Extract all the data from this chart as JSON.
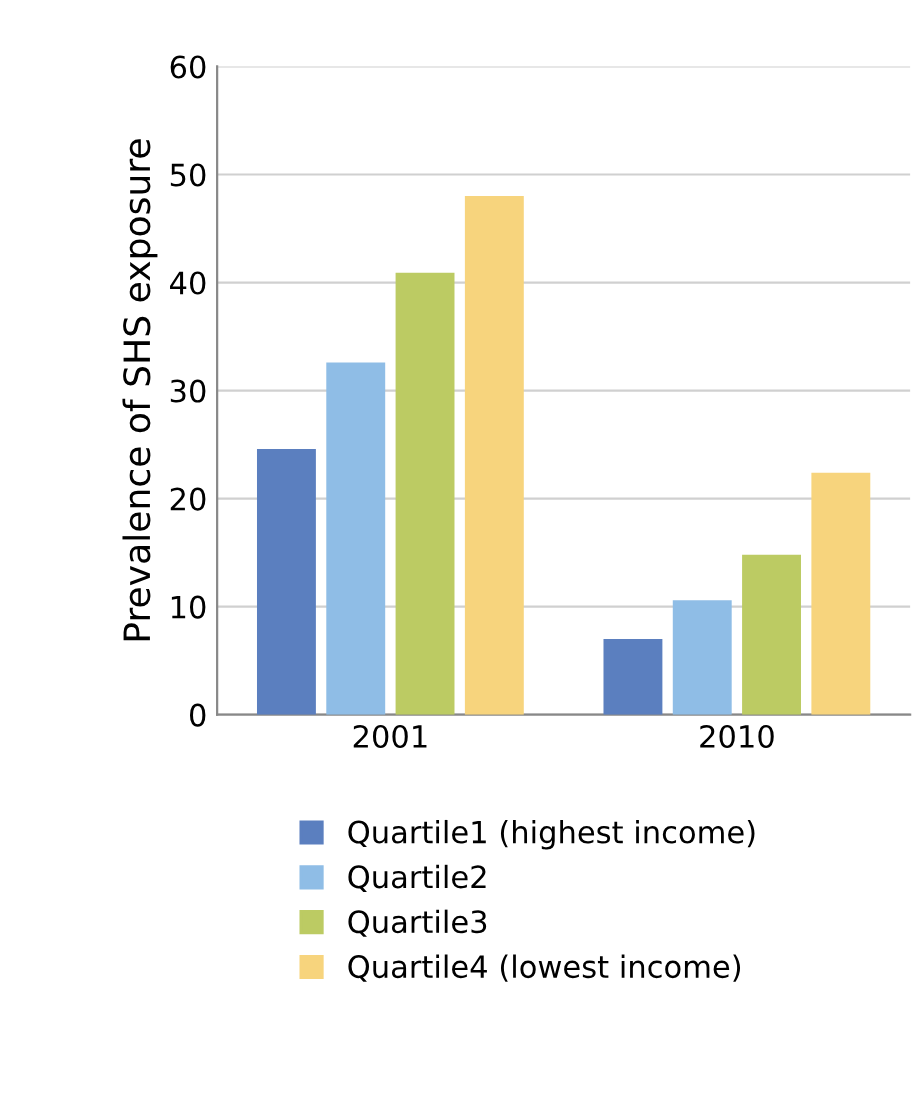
{
  "chart_data": {
    "type": "bar",
    "ylabel": "Prevalence of SHS exposure",
    "categories": [
      "2001",
      "2010"
    ],
    "series": [
      {
        "name": "Quartile1 (highest income)",
        "color": "#5b7fbf",
        "values": [
          24.6,
          7.0
        ]
      },
      {
        "name": "Quartile2",
        "color": "#8fbde6",
        "values": [
          32.6,
          10.6
        ]
      },
      {
        "name": "Quartile3",
        "color": "#bccb63",
        "values": [
          40.9,
          14.8
        ]
      },
      {
        "name": "Quartile4 (lowest income)",
        "color": "#f7d47d",
        "values": [
          48.0,
          22.4
        ]
      }
    ],
    "ylim": [
      0,
      60
    ],
    "yticks": [
      0,
      10,
      20,
      30,
      40,
      50,
      60
    ],
    "grid": "y",
    "legend": "bottom"
  }
}
